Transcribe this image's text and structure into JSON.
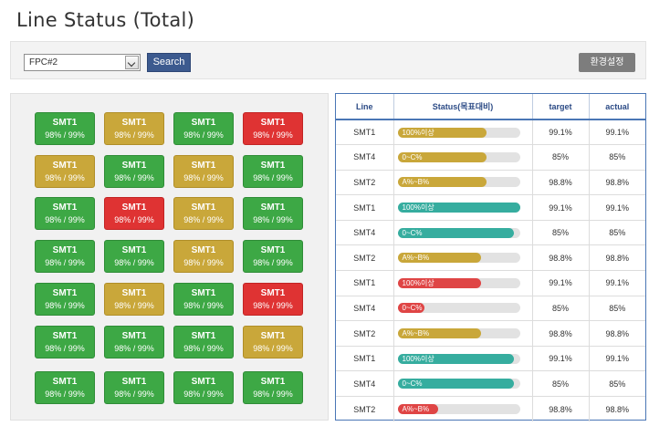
{
  "header": {
    "title": "Line Status (Total)"
  },
  "toolbar": {
    "line_select": {
      "selected": "FPC#2"
    },
    "search_label": "Search",
    "settings_label": "환경설정"
  },
  "grid": {
    "rows": [
      [
        {
          "name": "SMT1",
          "value": "98% / 99%",
          "status": "green"
        },
        {
          "name": "SMT1",
          "value": "98% / 99%",
          "status": "yellow"
        },
        {
          "name": "SMT1",
          "value": "98% / 99%",
          "status": "green"
        },
        {
          "name": "SMT1",
          "value": "98% / 99%",
          "status": "red"
        }
      ],
      [
        {
          "name": "SMT1",
          "value": "98% / 99%",
          "status": "yellow"
        },
        {
          "name": "SMT1",
          "value": "98% / 99%",
          "status": "green"
        },
        {
          "name": "SMT1",
          "value": "98% / 99%",
          "status": "yellow"
        },
        {
          "name": "SMT1",
          "value": "98% / 99%",
          "status": "green"
        }
      ],
      [
        {
          "name": "SMT1",
          "value": "98% / 99%",
          "status": "green"
        },
        {
          "name": "SMT1",
          "value": "98% / 99%",
          "status": "red"
        },
        {
          "name": "SMT1",
          "value": "98% / 99%",
          "status": "yellow"
        },
        {
          "name": "SMT1",
          "value": "98% / 99%",
          "status": "green"
        }
      ],
      [
        {
          "name": "SMT1",
          "value": "98% / 99%",
          "status": "green"
        },
        {
          "name": "SMT1",
          "value": "98% / 99%",
          "status": "green"
        },
        {
          "name": "SMT1",
          "value": "98% / 99%",
          "status": "yellow"
        },
        {
          "name": "SMT1",
          "value": "98% / 99%",
          "status": "green"
        }
      ],
      [
        {
          "name": "SMT1",
          "value": "98% / 99%",
          "status": "green"
        },
        {
          "name": "SMT1",
          "value": "98% / 99%",
          "status": "yellow"
        },
        {
          "name": "SMT1",
          "value": "98% / 99%",
          "status": "green"
        },
        {
          "name": "SMT1",
          "value": "98% / 99%",
          "status": "red"
        }
      ],
      [
        {
          "name": "SMT1",
          "value": "98% / 99%",
          "status": "green"
        },
        {
          "name": "SMT1",
          "value": "98% / 99%",
          "status": "green"
        },
        {
          "name": "SMT1",
          "value": "98% / 99%",
          "status": "green"
        },
        {
          "name": "SMT1",
          "value": "98% / 99%",
          "status": "yellow"
        }
      ],
      [
        {
          "name": "SMT1",
          "value": "98% / 99%",
          "status": "green"
        },
        {
          "name": "SMT1",
          "value": "98% / 99%",
          "status": "green"
        },
        {
          "name": "SMT1",
          "value": "98% / 99%",
          "status": "green"
        },
        {
          "name": "SMT1",
          "value": "98% / 99%",
          "status": "green"
        }
      ]
    ]
  },
  "table": {
    "headers": [
      "Line",
      "Status(목표대비)",
      "target",
      "actual"
    ],
    "rows": [
      {
        "line": "SMT1",
        "status_label": "100%이상",
        "progress": 0.73,
        "color": "yellow",
        "target": "99.1%",
        "actual": "99.1%"
      },
      {
        "line": "SMT4",
        "status_label": "0~C%",
        "progress": 0.73,
        "color": "yellow",
        "target": "85%",
        "actual": "85%"
      },
      {
        "line": "SMT2",
        "status_label": "A%~B%",
        "progress": 0.73,
        "color": "yellow",
        "target": "98.8%",
        "actual": "98.8%"
      },
      {
        "line": "SMT1",
        "status_label": "100%이상",
        "progress": 1.0,
        "color": "teal",
        "target": "99.1%",
        "actual": "99.1%"
      },
      {
        "line": "SMT4",
        "status_label": "0~C%",
        "progress": 0.95,
        "color": "teal",
        "target": "85%",
        "actual": "85%"
      },
      {
        "line": "SMT2",
        "status_label": "A%~B%",
        "progress": 0.68,
        "color": "yellow",
        "target": "98.8%",
        "actual": "98.8%"
      },
      {
        "line": "SMT1",
        "status_label": "100%이상",
        "progress": 0.68,
        "color": "red",
        "target": "99.1%",
        "actual": "99.1%"
      },
      {
        "line": "SMT4",
        "status_label": "0~C%",
        "progress": 0.22,
        "color": "red",
        "target": "85%",
        "actual": "85%"
      },
      {
        "line": "SMT2",
        "status_label": "A%~B%",
        "progress": 0.68,
        "color": "yellow",
        "target": "98.8%",
        "actual": "98.8%"
      },
      {
        "line": "SMT1",
        "status_label": "100%이상",
        "progress": 0.95,
        "color": "teal",
        "target": "99.1%",
        "actual": "99.1%"
      },
      {
        "line": "SMT4",
        "status_label": "0~C%",
        "progress": 0.95,
        "color": "teal",
        "target": "85%",
        "actual": "85%"
      },
      {
        "line": "SMT2",
        "status_label": "A%~B%",
        "progress": 0.33,
        "color": "red",
        "target": "98.8%",
        "actual": "98.8%"
      }
    ]
  },
  "colors": {
    "green": "#3da845",
    "yellow": "#c9a73a",
    "red": "#df3333",
    "teal": "#36ad9f",
    "accent": "#3c5a8f"
  }
}
